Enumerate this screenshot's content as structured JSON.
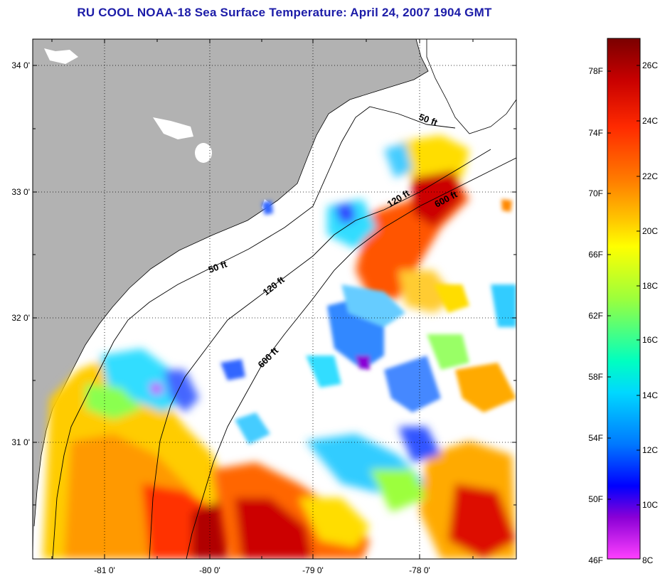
{
  "title": "RU COOL  NOAA-18  Sea Surface Temperature:  April 24, 2007 1904 GMT",
  "map": {
    "lat_ticks": [
      {
        "value": 34.0,
        "label": "34 0'"
      },
      {
        "value": 33.0,
        "label": "33 0'"
      },
      {
        "value": 32.0,
        "label": "32 0'"
      },
      {
        "value": 31.0,
        "label": "31 0'"
      }
    ],
    "lon_ticks": [
      {
        "value": -81.0,
        "label": "-81 0'"
      },
      {
        "value": -80.0,
        "label": "-80 0'"
      },
      {
        "value": -79.0,
        "label": "-79 0'"
      },
      {
        "value": -78.0,
        "label": "-78 0'"
      }
    ],
    "contours": [
      {
        "id": "50ft-south",
        "label": "50 ft"
      },
      {
        "id": "50ft-north",
        "label": "50 ft"
      },
      {
        "id": "120ft-south",
        "label": "120 ft"
      },
      {
        "id": "120ft-north",
        "label": "120 ft"
      },
      {
        "id": "600ft-south",
        "label": "600 ft"
      },
      {
        "id": "600ft-north",
        "label": "600 ft"
      }
    ],
    "colors": {
      "land": "#b2b2b2",
      "ocean_no_data": "#ffffff",
      "frame": "#000000"
    }
  },
  "colorbar": {
    "fahrenheit_labels": [
      "78F",
      "74F",
      "70F",
      "66F",
      "62F",
      "58F",
      "54F",
      "50F",
      "46F"
    ],
    "celsius_labels": [
      "26C",
      "24C",
      "22C",
      "20C",
      "18C",
      "16C",
      "14C",
      "12C",
      "10C",
      "8C"
    ],
    "colors_top_to_bottom": [
      "#7a0000",
      "#c80000",
      "#ff2a00",
      "#ff7a00",
      "#ffc800",
      "#ffff00",
      "#9cff3c",
      "#00ffc0",
      "#00d8ff",
      "#0078ff",
      "#0000ff",
      "#8a00d6",
      "#ff40ff"
    ]
  }
}
